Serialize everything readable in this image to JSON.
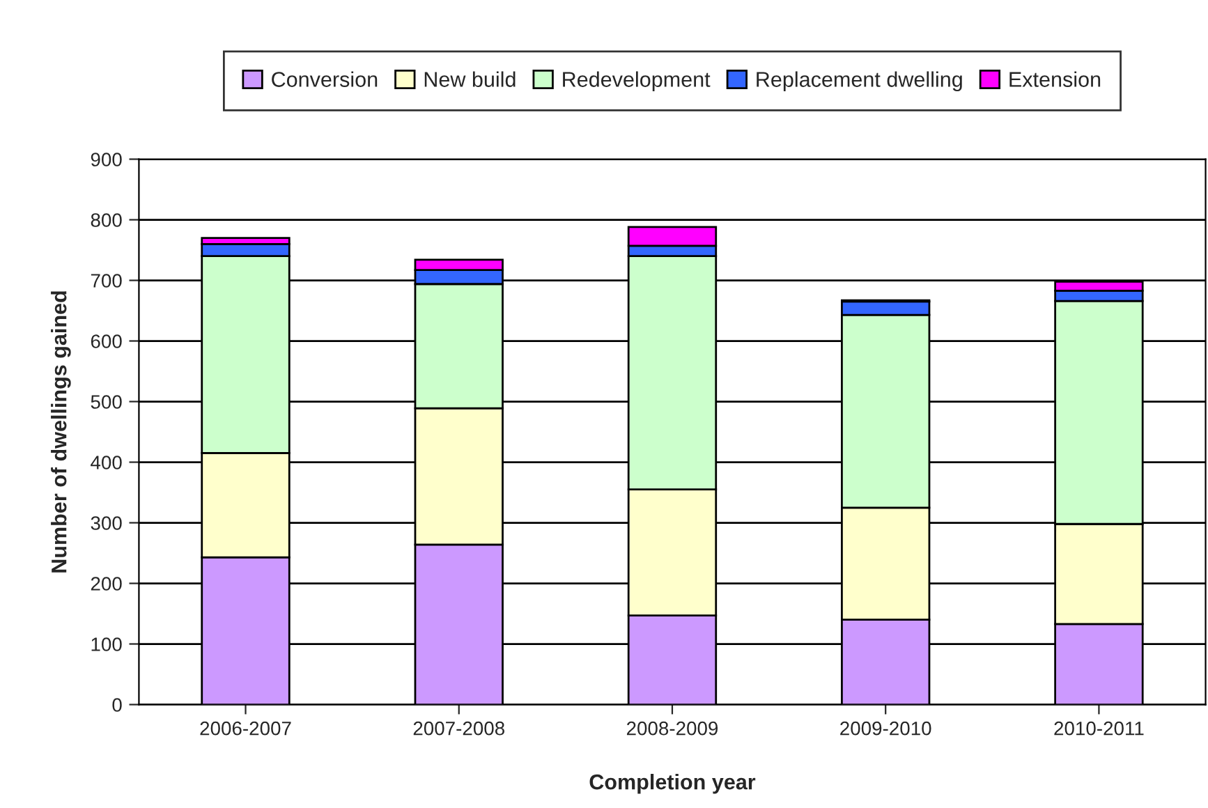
{
  "chart_data": {
    "type": "bar",
    "stacked": true,
    "xlabel": "Completion year",
    "ylabel": "Number of dwellings gained",
    "categories": [
      "2006-2007",
      "2007-2008",
      "2008-2009",
      "2009-2010",
      "2010-2011"
    ],
    "series": [
      {
        "name": "Conversion",
        "color": "#cc99ff",
        "values": [
          243,
          264,
          147,
          140,
          133
        ]
      },
      {
        "name": "New build",
        "color": "#ffffcc",
        "values": [
          172,
          225,
          208,
          185,
          165
        ]
      },
      {
        "name": "Redevelopment",
        "color": "#ccffcc",
        "values": [
          325,
          205,
          385,
          318,
          368
        ]
      },
      {
        "name": "Replacement dwelling",
        "color": "#3366ff",
        "values": [
          20,
          23,
          17,
          22,
          17
        ]
      },
      {
        "name": "Extension",
        "color": "#ff00ff",
        "values": [
          10,
          17,
          31,
          2,
          15
        ]
      }
    ],
    "ylim": [
      0,
      900
    ],
    "yticks": [
      0,
      100,
      200,
      300,
      400,
      500,
      600,
      700,
      800,
      900
    ],
    "grid": "y",
    "legend": "top"
  }
}
